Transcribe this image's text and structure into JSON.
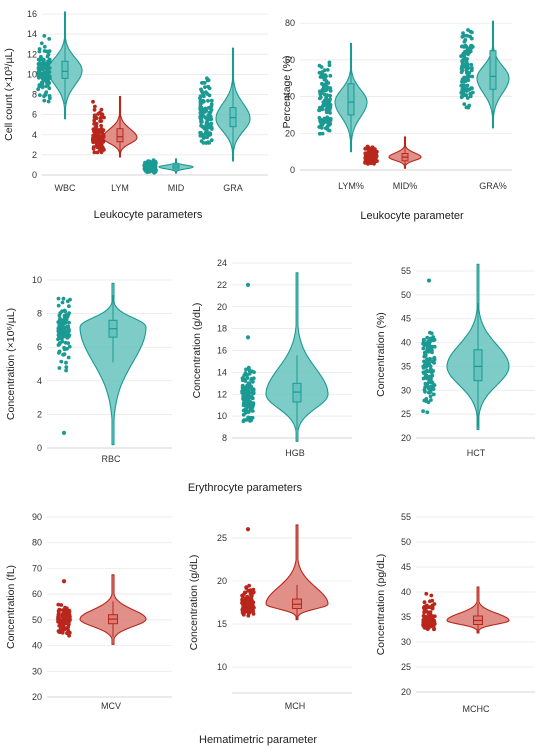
{
  "colors": {
    "teal": "#1a9a92",
    "teal_fill": "#66c3bd",
    "red": "#b8261c",
    "red_fill": "#dc7c74"
  },
  "group_labels": {
    "leukocyte_left": "Leukocyte parameters",
    "leukocyte_right": "Leukocyte parameter",
    "erythrocyte": "Erythrocyte parameters",
    "hematimetric": "Hematimetric parameter"
  },
  "chart_data": [
    {
      "id": "leuko-count",
      "type": "violin",
      "ylabel": "Cell count (×10³/µL)",
      "ylim": [
        0,
        16
      ],
      "yticks": [
        0,
        2,
        4,
        6,
        8,
        10,
        12,
        14,
        16
      ],
      "grid": true,
      "categories": [
        "WBC",
        "LYM",
        "MID",
        "GRA"
      ],
      "series": [
        {
          "category": "WBC",
          "color": "teal",
          "min": 5.6,
          "q1": 9.6,
          "median": 10.3,
          "q3": 11.3,
          "max": 16.2,
          "mode": 10.4,
          "pts_min": 6.5,
          "pts_max": 15.1
        },
        {
          "category": "LYM",
          "color": "red",
          "min": 1.8,
          "q1": 3.3,
          "median": 3.8,
          "q3": 4.6,
          "max": 7.8,
          "mode": 3.7,
          "pts_min": 1.9,
          "pts_max": 7.4
        },
        {
          "category": "MID",
          "color": "teal",
          "min": 0.2,
          "q1": 0.6,
          "median": 0.8,
          "q3": 1.0,
          "max": 1.6,
          "mode": 0.8,
          "pts_min": 0.2,
          "pts_max": 1.6
        },
        {
          "category": "GRA",
          "color": "teal",
          "min": 1.4,
          "q1": 4.8,
          "median": 5.7,
          "q3": 6.7,
          "max": 12.6,
          "mode": 5.6,
          "pts_min": 2.8,
          "pts_max": 11.5
        }
      ]
    },
    {
      "id": "leuko-pct",
      "type": "violin",
      "ylabel": "Percentage (%)",
      "ylim": [
        0,
        85
      ],
      "yticks": [
        0,
        20,
        40,
        60,
        80
      ],
      "grid": true,
      "categories": [
        "LYM%",
        "MID%",
        "GRA%"
      ],
      "series": [
        {
          "category": "LYM%",
          "color": "teal",
          "min": 10,
          "q1": 30,
          "median": 37,
          "q3": 47,
          "max": 69,
          "mode": 37,
          "pts_min": 18,
          "pts_max": 60
        },
        {
          "category": "MID%",
          "color": "red",
          "min": 1,
          "q1": 5,
          "median": 7,
          "q3": 9,
          "max": 18,
          "mode": 7,
          "pts_min": 3,
          "pts_max": 15
        },
        {
          "category": "GRA%",
          "color": "teal",
          "min": 23,
          "q1": 44,
          "median": 51,
          "q3": 65,
          "max": 81,
          "mode": 50,
          "pts_min": 30,
          "pts_max": 78
        }
      ]
    },
    {
      "id": "rbc",
      "type": "violin",
      "ylabel": "Concentration (×10⁶/µL)",
      "ylim": [
        0,
        10
      ],
      "yticks": [
        0,
        2,
        4,
        6,
        8,
        10
      ],
      "grid": true,
      "categories": [
        "RBC"
      ],
      "series": [
        {
          "category": "RBC",
          "color": "teal",
          "min": 0.2,
          "q1": 6.6,
          "median": 7.1,
          "q3": 7.6,
          "max": 9.8,
          "mode": 7.2,
          "pts_min": 4.4,
          "pts_max": 9.4,
          "outliers": [
            0.9
          ]
        }
      ]
    },
    {
      "id": "hgb",
      "type": "violin",
      "ylabel": "Concentration (g/dL)",
      "ylim": [
        8,
        24
      ],
      "yticks": [
        8,
        10,
        12,
        14,
        16,
        18,
        20,
        22,
        24
      ],
      "grid": true,
      "categories": [
        "HGB"
      ],
      "series": [
        {
          "category": "HGB",
          "color": "teal",
          "min": 7.7,
          "q1": 11.3,
          "median": 12.2,
          "q3": 13.0,
          "max": 23.1,
          "mode": 12.0,
          "pts_min": 8.8,
          "pts_max": 14.8,
          "outliers": [
            17.2,
            22.0
          ]
        }
      ]
    },
    {
      "id": "hct",
      "type": "violin",
      "ylabel": "Concentration (%)",
      "ylim": [
        20,
        55
      ],
      "yticks": [
        20,
        25,
        30,
        35,
        40,
        45,
        50,
        55
      ],
      "grid": true,
      "categories": [
        "HCT"
      ],
      "series": [
        {
          "category": "HCT",
          "color": "teal",
          "min": 21.8,
          "q1": 32.0,
          "median": 35.0,
          "q3": 38.5,
          "max": 56.4,
          "mode": 35.0,
          "pts_min": 25.2,
          "pts_max": 42.5,
          "outliers": [
            53.0
          ]
        }
      ]
    },
    {
      "id": "mcv",
      "type": "violin",
      "ylabel": "Concentration (fL)",
      "ylim": [
        20,
        90
      ],
      "yticks": [
        20,
        30,
        40,
        50,
        60,
        70,
        80,
        90
      ],
      "grid": true,
      "categories": [
        "MCV"
      ],
      "series": [
        {
          "category": "MCV",
          "color": "red",
          "min": 40.5,
          "q1": 48.5,
          "median": 50.3,
          "q3": 52.0,
          "max": 67.5,
          "mode": 50.3,
          "pts_min": 42.5,
          "pts_max": 57.0,
          "outliers": [
            65.0
          ]
        }
      ]
    },
    {
      "id": "mch",
      "type": "violin",
      "ylabel": "Concentration (g/dL)",
      "ylim": [
        7,
        28
      ],
      "yticks": [
        10,
        15,
        20,
        25
      ],
      "grid": true,
      "categories": [
        "MCH"
      ],
      "series": [
        {
          "category": "MCH",
          "color": "red",
          "min": 15.5,
          "q1": 16.8,
          "median": 17.3,
          "q3": 17.9,
          "max": 26.5,
          "mode": 17.3,
          "pts_min": 15.8,
          "pts_max": 19.8,
          "outliers": [
            26.0
          ]
        }
      ]
    },
    {
      "id": "mchc",
      "type": "violin",
      "ylabel": "Concentration (pg/dL)",
      "ylim": [
        20,
        55
      ],
      "yticks": [
        20,
        25,
        30,
        35,
        40,
        45,
        50,
        55
      ],
      "grid": true,
      "categories": [
        "MCHC"
      ],
      "series": [
        {
          "category": "MCHC",
          "color": "red",
          "min": 31.8,
          "q1": 33.5,
          "median": 34.3,
          "q3": 35.2,
          "max": 41.0,
          "mode": 34.3,
          "pts_min": 32.3,
          "pts_max": 40.1
        }
      ]
    }
  ]
}
